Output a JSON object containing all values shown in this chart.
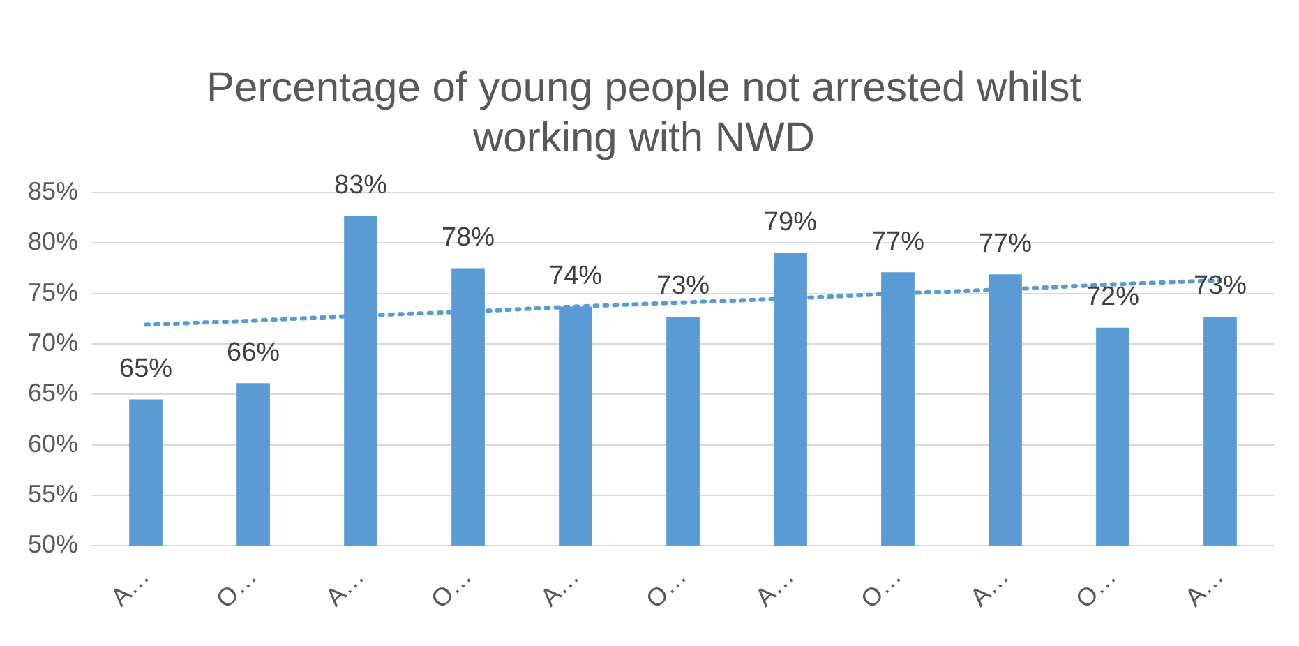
{
  "chart_data": {
    "type": "bar",
    "title": "Percentage of young people not arrested whilst working with NWD",
    "categories": [
      "A…",
      "O…",
      "A…",
      "O…",
      "A…",
      "O…",
      "A…",
      "O…",
      "A…",
      "O…",
      "A…"
    ],
    "series": [
      {
        "color": "#5b9bd5",
        "values": [
          64.5,
          66.1,
          82.7,
          77.5,
          73.7,
          72.7,
          79.0,
          77.1,
          76.9,
          71.6,
          72.7
        ],
        "value_labels": [
          "65%",
          "66%",
          "83%",
          "78%",
          "74%",
          "73%",
          "79%",
          "77%",
          "77%",
          "72%",
          "73%"
        ]
      },
      {
        "type": "line",
        "color": "#5b9bd5",
        "line_style": "dotted",
        "marker": "none",
        "values": [
          71.9,
          72.3,
          72.8,
          73.2,
          73.7,
          74.1,
          74.5,
          75.0,
          75.4,
          75.9,
          76.3
        ]
      }
    ],
    "ylim": [
      50,
      85
    ],
    "yticks": [
      {
        "value": 50,
        "label": "50%"
      },
      {
        "value": 55,
        "label": "55%"
      },
      {
        "value": 60,
        "label": "60%"
      },
      {
        "value": 65,
        "label": "65%"
      },
      {
        "value": 70,
        "label": "70%"
      },
      {
        "value": 75,
        "label": "75%"
      },
      {
        "value": 80,
        "label": "80%"
      },
      {
        "value": 85,
        "label": "85%"
      }
    ],
    "grid": "y",
    "legend": false
  }
}
